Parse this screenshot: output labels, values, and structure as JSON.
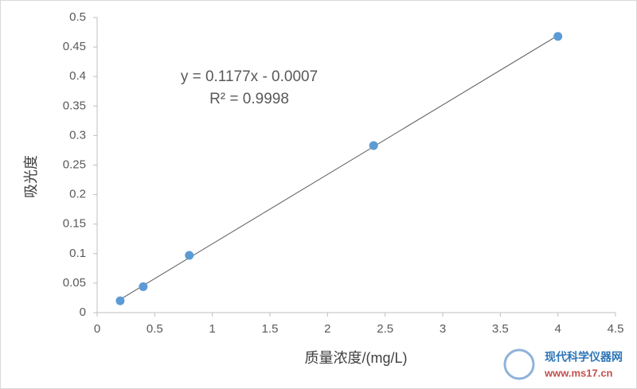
{
  "chart_data": {
    "type": "scatter",
    "x_label": "质量浓度/(mg/L)",
    "y_label": "吸光度",
    "series": [
      {
        "name": "吸光度",
        "color": "#5b9bd5",
        "x": [
          0.2,
          0.4,
          0.8,
          2.4,
          4.0
        ],
        "values": [
          0.02,
          0.044,
          0.097,
          0.283,
          0.468
        ]
      }
    ],
    "trendline": {
      "color": "#595959",
      "equation": "y = 0.1177x - 0.0007",
      "r_squared": "R² = 0.9998"
    },
    "xlim": [
      0,
      4.5
    ],
    "xticks": [
      0,
      0.5,
      1,
      1.5,
      2,
      2.5,
      3,
      3.5,
      4,
      4.5
    ],
    "ylim": [
      0,
      0.5
    ],
    "yticks": [
      0,
      0.05,
      0.1,
      0.15,
      0.2,
      0.25,
      0.3,
      0.35,
      0.4,
      0.45,
      0.5
    ],
    "grid": false,
    "watermark": {
      "name": "现代科学仪器网",
      "url": "www.ms17.cn"
    }
  }
}
